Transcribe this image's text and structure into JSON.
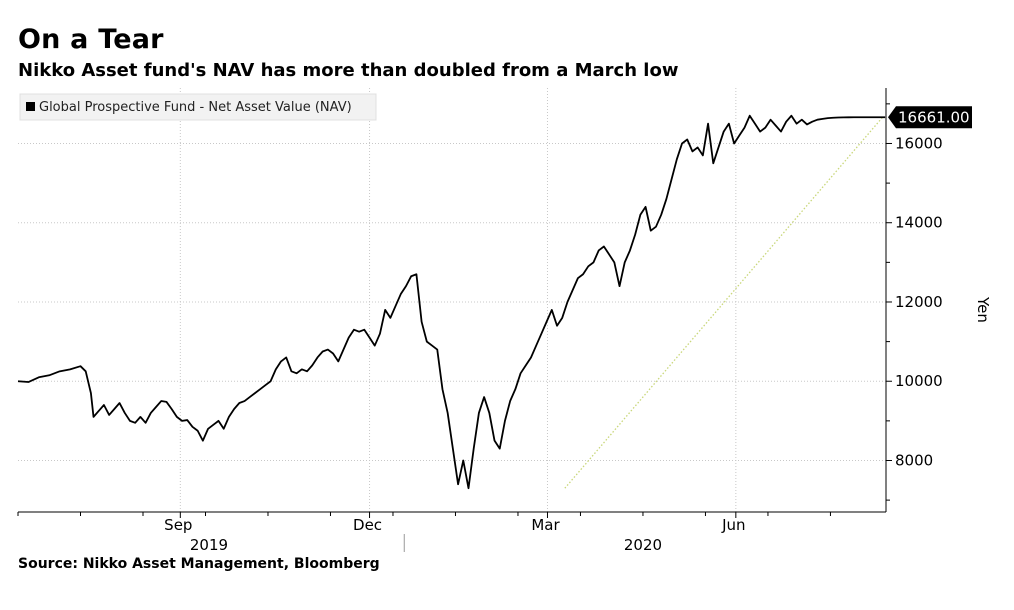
{
  "chart_data": {
    "type": "line",
    "title": "On a Tear",
    "subtitle": "Nikko Asset fund's NAV has more than doubled from a March low",
    "source": "Source: Nikko Asset Management, Bloomberg",
    "ylabel": "Yen",
    "ylim": [
      6700,
      17400
    ],
    "yticks": [
      8000,
      10000,
      12000,
      14000,
      16000
    ],
    "ytick_labels": [
      "8000",
      "10000",
      "12000",
      "14000",
      "16000"
    ],
    "xlim": [
      0,
      100
    ],
    "xtick_labels": [
      {
        "label": "Sep",
        "x": 18.7
      },
      {
        "label": "Dec",
        "x": 40.5
      },
      {
        "label": "Mar",
        "x": 61.0
      },
      {
        "label": "Jun",
        "x": 82.7
      }
    ],
    "year_labels": [
      {
        "label": "2019",
        "x": 22.0
      },
      {
        "label": "2020",
        "x": 72.0
      }
    ],
    "grid": true,
    "legend": {
      "position": "top-left",
      "entries": [
        "Global Prospective Fund - Net Asset Value (NAV)"
      ]
    },
    "last_value_label": "16661.00",
    "colors": {
      "series": "#000000",
      "trend": "#c9d77a",
      "last_value_bg": "#000000"
    },
    "series": [
      {
        "name": "Global Prospective Fund - Net Asset Value (NAV)",
        "x": [
          0.0,
          1.2,
          2.4,
          3.6,
          4.8,
          6.0,
          7.2,
          7.8,
          8.4,
          8.7,
          9.3,
          9.9,
          10.5,
          11.1,
          11.7,
          12.3,
          12.9,
          13.5,
          14.1,
          14.7,
          15.3,
          15.9,
          16.5,
          17.1,
          17.7,
          18.3,
          18.9,
          19.5,
          20.1,
          20.7,
          21.3,
          21.9,
          22.5,
          23.1,
          23.7,
          24.3,
          24.9,
          25.5,
          26.1,
          26.7,
          27.3,
          27.9,
          28.5,
          29.1,
          29.7,
          30.3,
          30.9,
          31.5,
          32.1,
          32.7,
          33.3,
          33.9,
          34.5,
          35.1,
          35.7,
          36.3,
          36.9,
          37.5,
          38.1,
          38.7,
          39.3,
          39.9,
          40.5,
          41.1,
          41.7,
          42.3,
          42.9,
          43.5,
          44.1,
          44.7,
          45.3,
          45.9,
          46.5,
          47.1,
          47.7,
          48.3,
          48.9,
          49.5,
          50.1,
          50.7,
          51.3,
          51.9,
          52.5,
          53.1,
          53.7,
          54.3,
          54.9,
          55.5,
          56.1,
          56.7,
          57.3,
          57.9,
          58.5,
          59.1,
          59.7,
          60.3,
          60.9,
          61.5,
          62.1,
          62.7,
          63.3,
          63.9,
          64.5,
          65.1,
          65.7,
          66.3,
          66.9,
          67.5,
          68.1,
          68.7,
          69.3,
          69.9,
          70.5,
          71.1,
          71.7,
          72.3,
          72.9,
          73.5,
          74.1,
          74.7,
          75.3,
          75.9,
          76.5,
          77.1,
          77.7,
          78.3,
          78.9,
          79.5,
          80.1,
          80.7,
          81.3,
          81.9,
          82.5,
          83.1,
          83.7,
          84.3,
          84.9,
          85.5,
          86.1,
          86.7,
          87.3,
          87.9,
          88.5,
          89.1,
          89.7,
          90.3,
          90.9,
          91.5,
          92.1,
          92.7,
          93.3,
          93.9,
          94.5,
          95.1,
          95.7,
          96.3,
          96.9,
          97.5,
          98.1,
          98.7,
          99.3,
          99.9
        ],
        "values": [
          10000,
          9980,
          10100,
          10150,
          10250,
          10300,
          10380,
          10250,
          9700,
          9100,
          9250,
          9400,
          9150,
          9300,
          9450,
          9200,
          9000,
          8950,
          9100,
          8950,
          9200,
          9350,
          9500,
          9480,
          9300,
          9100,
          9000,
          9020,
          8850,
          8750,
          8500,
          8800,
          8900,
          9000,
          8800,
          9100,
          9300,
          9450,
          9500,
          9600,
          9700,
          9800,
          9900,
          10000,
          10300,
          10500,
          10600,
          10250,
          10200,
          10300,
          10250,
          10400,
          10600,
          10750,
          10800,
          10700,
          10500,
          10800,
          11100,
          11300,
          11250,
          11300,
          11100,
          10900,
          11200,
          11800,
          11600,
          11900,
          12200,
          12400,
          12650,
          12700,
          11500,
          11000,
          10900,
          10800,
          9800,
          9200,
          8300,
          7400,
          8000,
          7300,
          8300,
          9200,
          9600,
          9200,
          8500,
          8300,
          9000,
          9500,
          9800,
          10200,
          10400,
          10600,
          10900,
          11200,
          11500,
          11800,
          11400,
          11600,
          12000,
          12300,
          12600,
          12700,
          12900,
          13000,
          13300,
          13400,
          13200,
          13000,
          12400,
          13000,
          13300,
          13700,
          14200,
          14400,
          13800,
          13900,
          14200,
          14600,
          15100,
          15600,
          16000,
          16100,
          15800,
          15900,
          15700,
          16500,
          15500,
          15900,
          16300,
          16500,
          16000,
          16200,
          16400,
          16700,
          16500,
          16300,
          16400,
          16600,
          16450,
          16300,
          16550,
          16700,
          16500,
          16600,
          16480,
          16550,
          16600,
          16620,
          16640,
          16650,
          16655,
          16658,
          16660,
          16661,
          16661,
          16661,
          16661,
          16661,
          16661,
          16661
        ]
      },
      {
        "name": "",
        "x": [
          63.0,
          99.6
        ],
        "values": [
          7300,
          16661
        ]
      }
    ]
  }
}
